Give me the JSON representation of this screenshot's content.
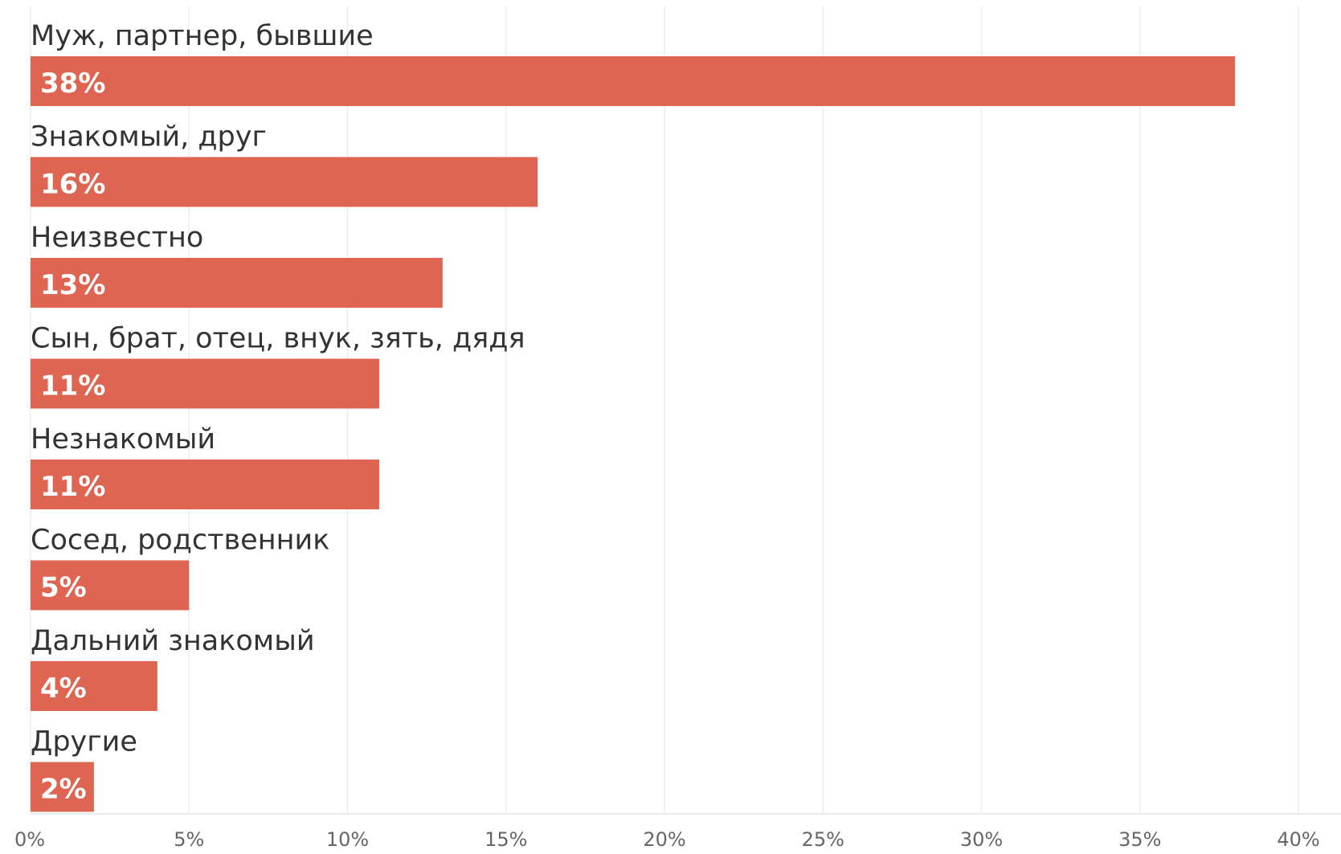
{
  "chart_data": {
    "type": "bar",
    "orientation": "horizontal",
    "categories": [
      "Муж, партнер, бывшие",
      "Знакомый, друг",
      "Неизвестно",
      "Сын, брат, отец, внук, зять, дядя",
      "Незнакомый",
      "Сосед, родственник",
      "Дальний знакомый",
      "Другие"
    ],
    "values": [
      38,
      16,
      13,
      11,
      11,
      5,
      4,
      2
    ],
    "value_labels": [
      "38%",
      "16%",
      "13%",
      "11%",
      "11%",
      "5%",
      "4%",
      "2%"
    ],
    "xticks": [
      0,
      5,
      10,
      15,
      20,
      25,
      30,
      35,
      40
    ],
    "xtick_labels": [
      "0%",
      "5%",
      "10%",
      "15%",
      "20%",
      "25%",
      "30%",
      "35%",
      "40%"
    ],
    "xlim": [
      0,
      41.4
    ],
    "grid": true,
    "bar_color": "#de6552",
    "grid_color": "#ececec",
    "label_color": "#333333",
    "value_label_color": "#ffffff",
    "tick_label_color": "#666666"
  }
}
